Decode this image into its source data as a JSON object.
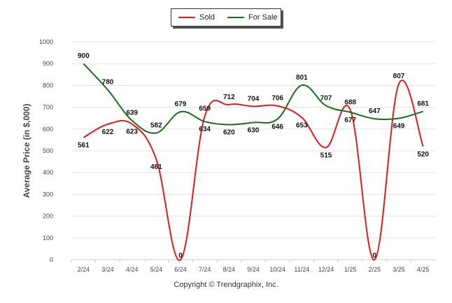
{
  "legend": {
    "items": [
      {
        "label": "Sold",
        "color": "#e31a1c"
      },
      {
        "label": "For Sale",
        "color": "#1a6b1a"
      }
    ]
  },
  "footer": {
    "text": "Copyright © Trendgraphix, Inc."
  },
  "chart_data": {
    "type": "line",
    "title": "",
    "xlabel": "",
    "ylabel": "Average Price (in $,000)",
    "ylim": [
      0,
      1000
    ],
    "yticks": [
      0,
      100,
      200,
      300,
      400,
      500,
      600,
      700,
      800,
      900,
      1000
    ],
    "grid": true,
    "legend_position": "top-center",
    "categories": [
      "2/24",
      "3/24",
      "4/24",
      "5/24",
      "6/24",
      "7/24",
      "8/24",
      "9/24",
      "10/24",
      "11/24",
      "12/24",
      "1/25",
      "2/25",
      "3/25",
      "4/25"
    ],
    "series": [
      {
        "name": "Sold",
        "color": "#e31a1c",
        "values": [
          561,
          622,
          623,
          461,
          0,
          659,
          712,
          704,
          706,
          653,
          515,
          688,
          0,
          807,
          520
        ]
      },
      {
        "name": "For Sale",
        "color": "#1a6b1a",
        "values": [
          900,
          780,
          639,
          582,
          679,
          634,
          620,
          630,
          646,
          801,
          707,
          677,
          647,
          649,
          681
        ]
      }
    ]
  }
}
